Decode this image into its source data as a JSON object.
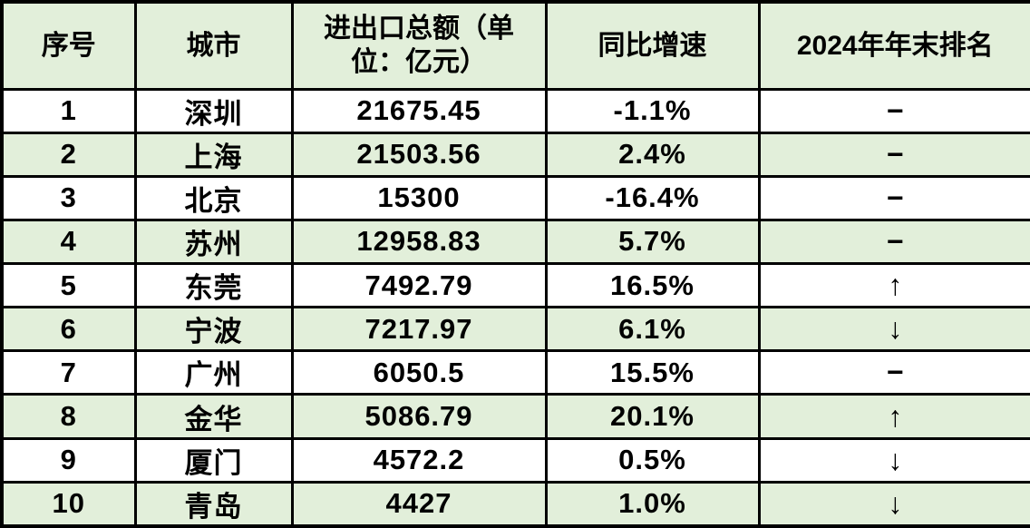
{
  "chart_data": {
    "type": "table",
    "title": "",
    "columns": [
      "序号",
      "城市",
      "进出口总额（单位：亿元）",
      "同比增速",
      "2024年年末排名"
    ],
    "rows": [
      [
        "1",
        "深圳",
        "21675.45",
        "-1.1%",
        "−"
      ],
      [
        "2",
        "上海",
        "21503.56",
        "2.4%",
        "−"
      ],
      [
        "3",
        "北京",
        "15300",
        "-16.4%",
        "−"
      ],
      [
        "4",
        "苏州",
        "12958.83",
        "5.7%",
        "−"
      ],
      [
        "5",
        "东莞",
        "7492.79",
        "16.5%",
        "↑"
      ],
      [
        "6",
        "宁波",
        "7217.97",
        "6.1%",
        "↓"
      ],
      [
        "7",
        "广州",
        "6050.5",
        "15.5%",
        "−"
      ],
      [
        "8",
        "金华",
        "5086.79",
        "20.1%",
        "↑"
      ],
      [
        "9",
        "厦门",
        "4572.2",
        "0.5%",
        "↓"
      ],
      [
        "10",
        "青岛",
        "4427",
        "1.0%",
        "↓"
      ]
    ],
    "rank_symbols": {
      "up": "↑",
      "down": "↓",
      "unchanged": "−"
    },
    "layout_hints": {
      "header_row": true,
      "zebra_striping": "even rows shaded green",
      "grid": "full black grid lines"
    }
  },
  "colors": {
    "header_bg": "#e2efda",
    "row_alt_bg": "#e2efda",
    "row_bg": "#ffffff",
    "border": "#000000",
    "text": "#000000"
  }
}
